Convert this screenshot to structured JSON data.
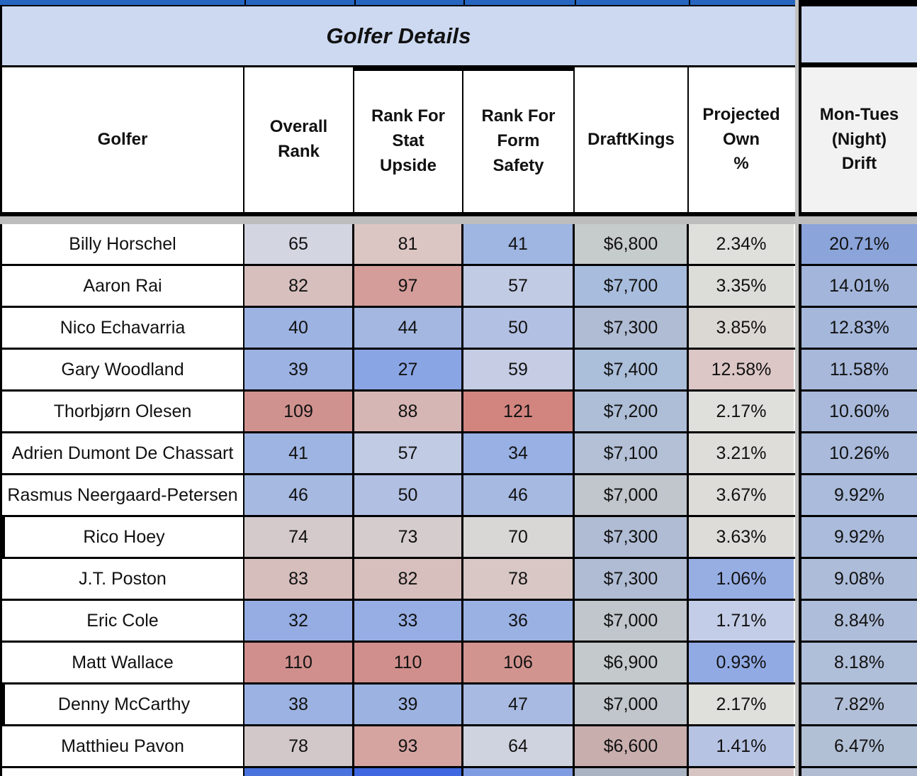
{
  "sheet": {
    "title": "Golfer Details"
  },
  "columns": [
    {
      "key": "golfer",
      "label": "Golfer"
    },
    {
      "key": "overall_rank",
      "label": "Overall\nRank"
    },
    {
      "key": "stat_upside",
      "label": "Rank For\nStat\nUpside"
    },
    {
      "key": "form_safety",
      "label": "Rank For\nForm\nSafety"
    },
    {
      "key": "draftkings",
      "label": "DraftKings"
    },
    {
      "key": "projected_own",
      "label": "Projected\nOwn\n%"
    },
    {
      "key": "drift",
      "label": "Mon-Tues\n(Night)\nDrift"
    }
  ],
  "palette": {
    "banner_bg": "#ccd9f1",
    "top_strip_blue": "#2766c0",
    "drift_header_bg": "#f2f2f2",
    "pane_divider_gray": "#c1c1c1",
    "header_split_gray": "#bdbdbd"
  },
  "rows": [
    {
      "golfer": "Billy Horschel",
      "thick_left": false,
      "cells": [
        {
          "v": "65",
          "bg": "#d3d6e1"
        },
        {
          "v": "81",
          "bg": "#dcc6c3"
        },
        {
          "v": "41",
          "bg": "#9fb5e2"
        },
        {
          "v": "$6,800",
          "bg": "#c6cbcc"
        },
        {
          "v": "2.34%",
          "bg": "#dfdfdc"
        }
      ],
      "drift": {
        "v": "20.71%",
        "bg": "#8ba4da"
      }
    },
    {
      "golfer": "Aaron Rai",
      "thick_left": false,
      "cells": [
        {
          "v": "82",
          "bg": "#d6bfbd"
        },
        {
          "v": "97",
          "bg": "#d49d9a"
        },
        {
          "v": "57",
          "bg": "#c2cbe4"
        },
        {
          "v": "$7,700",
          "bg": "#a8bddd"
        },
        {
          "v": "3.35%",
          "bg": "#dcdcd8"
        }
      ],
      "drift": {
        "v": "14.01%",
        "bg": "#a3b5da"
      }
    },
    {
      "golfer": "Nico Echavarria",
      "thick_left": false,
      "cells": [
        {
          "v": "40",
          "bg": "#9db3e2"
        },
        {
          "v": "44",
          "bg": "#a3b7e1"
        },
        {
          "v": "50",
          "bg": "#b2c0e3"
        },
        {
          "v": "$7,300",
          "bg": "#b0bcd4"
        },
        {
          "v": "3.85%",
          "bg": "#dbd7d3"
        }
      ],
      "drift": {
        "v": "12.83%",
        "bg": "#a5b7db"
      }
    },
    {
      "golfer": "Gary Woodland",
      "thick_left": false,
      "cells": [
        {
          "v": "39",
          "bg": "#9cb2e2"
        },
        {
          "v": "27",
          "bg": "#8aa5e4"
        },
        {
          "v": "59",
          "bg": "#c5cce4"
        },
        {
          "v": "$7,400",
          "bg": "#abbeda"
        },
        {
          "v": "12.58%",
          "bg": "#dcc7c6"
        }
      ],
      "drift": {
        "v": "11.58%",
        "bg": "#a7b8db"
      }
    },
    {
      "golfer": "Thorbjørn Olesen",
      "thick_left": false,
      "cells": [
        {
          "v": "109",
          "bg": "#d0928f"
        },
        {
          "v": "88",
          "bg": "#d6b6b4"
        },
        {
          "v": "121",
          "bg": "#d2847f"
        },
        {
          "v": "$7,200",
          "bg": "#aebed7"
        },
        {
          "v": "2.17%",
          "bg": "#dfdfdc"
        }
      ],
      "drift": {
        "v": "10.60%",
        "bg": "#a8b9db"
      }
    },
    {
      "golfer": "Adrien Dumont De Chassart",
      "thick_left": false,
      "cells": [
        {
          "v": "41",
          "bg": "#9eb4e2"
        },
        {
          "v": "57",
          "bg": "#c2cbe4"
        },
        {
          "v": "34",
          "bg": "#98b0e3"
        },
        {
          "v": "$7,100",
          "bg": "#b3c0d6"
        },
        {
          "v": "3.21%",
          "bg": "#deddda"
        }
      ],
      "drift": {
        "v": "10.26%",
        "bg": "#a9badb"
      }
    },
    {
      "golfer": "Rasmus Neergaard-Petersen",
      "thick_left": false,
      "cells": [
        {
          "v": "46",
          "bg": "#a6b9e1"
        },
        {
          "v": "50",
          "bg": "#b1bfe2"
        },
        {
          "v": "46",
          "bg": "#a6b9e1"
        },
        {
          "v": "$7,000",
          "bg": "#c0c6cb"
        },
        {
          "v": "3.67%",
          "bg": "#dddcd8"
        }
      ],
      "drift": {
        "v": "9.92%",
        "bg": "#aabbdb"
      }
    },
    {
      "golfer": "Rico Hoey",
      "thick_left": true,
      "cells": [
        {
          "v": "74",
          "bg": "#d5cacb"
        },
        {
          "v": "73",
          "bg": "#d5cccd"
        },
        {
          "v": "70",
          "bg": "#d9d6d6"
        },
        {
          "v": "$7,300",
          "bg": "#b0bcd4"
        },
        {
          "v": "3.63%",
          "bg": "#dddcd8"
        }
      ],
      "drift": {
        "v": "9.92%",
        "bg": "#aabbdb"
      }
    },
    {
      "golfer": "J.T. Poston",
      "thick_left": false,
      "cells": [
        {
          "v": "83",
          "bg": "#d6bebc"
        },
        {
          "v": "82",
          "bg": "#d6bfbd"
        },
        {
          "v": "78",
          "bg": "#d8c7c5"
        },
        {
          "v": "$7,300",
          "bg": "#b0bcd4"
        },
        {
          "v": "1.06%",
          "bg": "#97aee3"
        }
      ],
      "drift": {
        "v": "9.08%",
        "bg": "#adbcd9"
      }
    },
    {
      "golfer": "Eric Cole",
      "thick_left": false,
      "cells": [
        {
          "v": "32",
          "bg": "#95ade3"
        },
        {
          "v": "33",
          "bg": "#96aee3"
        },
        {
          "v": "36",
          "bg": "#9ab1e3"
        },
        {
          "v": "$7,000",
          "bg": "#c0c6cb"
        },
        {
          "v": "1.71%",
          "bg": "#c3cde7"
        }
      ],
      "drift": {
        "v": "8.84%",
        "bg": "#aebdd9"
      }
    },
    {
      "golfer": "Matt Wallace",
      "thick_left": false,
      "cells": [
        {
          "v": "110",
          "bg": "#d08f8c"
        },
        {
          "v": "110",
          "bg": "#d08f8c"
        },
        {
          "v": "106",
          "bg": "#d2948f"
        },
        {
          "v": "$6,900",
          "bg": "#c4c9cb"
        },
        {
          "v": "0.93%",
          "bg": "#91aae4"
        }
      ],
      "drift": {
        "v": "8.18%",
        "bg": "#afbed9"
      }
    },
    {
      "golfer": "Denny McCarthy",
      "thick_left": true,
      "cells": [
        {
          "v": "38",
          "bg": "#9bb2e2"
        },
        {
          "v": "39",
          "bg": "#9cb3e2"
        },
        {
          "v": "47",
          "bg": "#a8bae1"
        },
        {
          "v": "$7,000",
          "bg": "#c0c6cb"
        },
        {
          "v": "2.17%",
          "bg": "#dfdfdc"
        }
      ],
      "drift": {
        "v": "7.82%",
        "bg": "#b1bfd8"
      }
    },
    {
      "golfer": "Matthieu Pavon",
      "thick_left": false,
      "cells": [
        {
          "v": "78",
          "bg": "#d3c8c9"
        },
        {
          "v": "93",
          "bg": "#d5a4a1"
        },
        {
          "v": "64",
          "bg": "#cfd3df"
        },
        {
          "v": "$6,600",
          "bg": "#c9aeae"
        },
        {
          "v": "1.41%",
          "bg": "#b6c3e3"
        }
      ],
      "drift": {
        "v": "6.47%",
        "bg": "#b2c0d6"
      }
    }
  ],
  "partial_row": {
    "cells": [
      {
        "v": "",
        "bg": "#4a73dd"
      },
      {
        "v": "",
        "bg": "#3f68e0"
      },
      {
        "v": "",
        "bg": "#7f9be2"
      },
      {
        "v": "",
        "bg": "#a9b3c1"
      },
      {
        "v": "",
        "bg": "#d5c4c1"
      }
    ],
    "drift": {
      "v": "",
      "bg": "#b0bcd2"
    }
  }
}
